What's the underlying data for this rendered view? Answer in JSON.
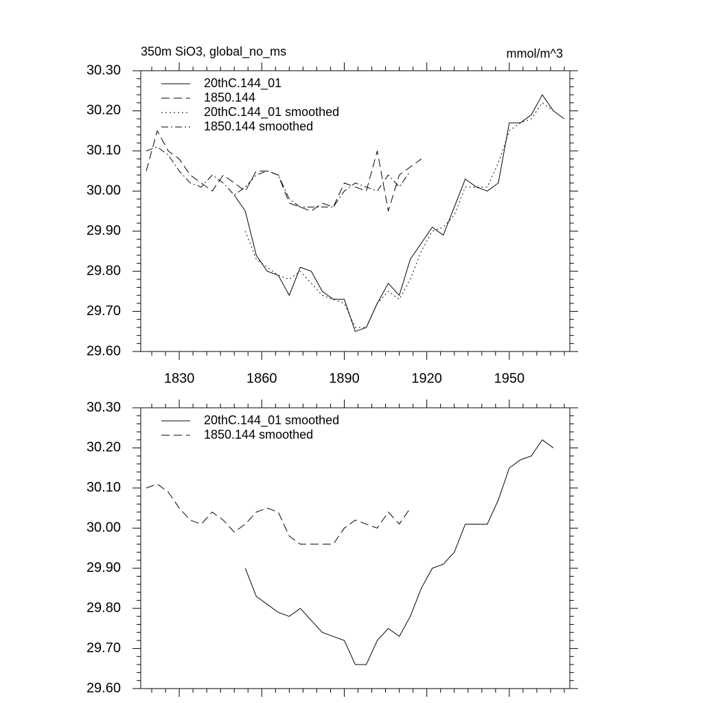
{
  "chart_data": [
    {
      "type": "line",
      "title": "350m SiO3, global_no_ms",
      "units": "mmol/m^3",
      "legend": "upper left",
      "x": [
        1818,
        1822,
        1826,
        1830,
        1834,
        1838,
        1842,
        1846,
        1850,
        1854,
        1858,
        1862,
        1866,
        1870,
        1874,
        1878,
        1882,
        1886,
        1890,
        1894,
        1898,
        1902,
        1906,
        1910,
        1914,
        1918,
        1922,
        1926,
        1930,
        1934,
        1938,
        1942,
        1946,
        1950,
        1954,
        1958,
        1962,
        1966,
        1970
      ],
      "xlim": [
        1816,
        1972
      ],
      "xticks": [
        1830,
        1860,
        1890,
        1920,
        1950
      ],
      "ylim": [
        29.6,
        30.3
      ],
      "yticks": [
        {
          "value": 29.6,
          "label": "29.60"
        },
        {
          "value": 29.7,
          "label": "29.70"
        },
        {
          "value": 29.8,
          "label": "29.80"
        },
        {
          "value": 29.9,
          "label": "29.90"
        },
        {
          "value": 30.0,
          "label": "30.00"
        },
        {
          "value": 30.1,
          "label": "30.10"
        },
        {
          "value": 30.2,
          "label": "30.20"
        },
        {
          "value": 30.3,
          "label": "30.30"
        }
      ],
      "series": [
        {
          "name": "20thC.144_01",
          "color": "#000000",
          "dash": "solid",
          "values": [
            null,
            null,
            null,
            null,
            null,
            null,
            null,
            null,
            29.99,
            29.95,
            29.84,
            29.8,
            29.79,
            29.74,
            29.81,
            29.8,
            29.75,
            29.73,
            29.73,
            29.65,
            29.66,
            29.72,
            29.77,
            29.74,
            29.83,
            29.87,
            29.91,
            29.89,
            29.96,
            30.03,
            30.01,
            30.0,
            30.02,
            30.17,
            30.17,
            30.19,
            30.24,
            30.2,
            30.18
          ]
        },
        {
          "name": "1850.144",
          "color": "#000000",
          "dash": "dashed",
          "values": [
            30.05,
            30.15,
            30.1,
            30.08,
            30.04,
            30.02,
            30.0,
            30.04,
            30.02,
            30.0,
            30.05,
            30.05,
            30.04,
            29.97,
            29.96,
            29.95,
            29.97,
            29.96,
            30.02,
            30.01,
            30.0,
            30.1,
            29.95,
            30.04,
            30.06,
            30.08,
            null,
            null,
            null,
            null,
            null,
            null,
            null,
            null,
            null,
            null,
            null,
            null,
            null
          ]
        },
        {
          "name": "20thC.144_01 smoothed",
          "color": "#000000",
          "dash": "dotted",
          "values": [
            null,
            null,
            null,
            null,
            null,
            null,
            null,
            null,
            null,
            29.9,
            29.83,
            29.81,
            29.79,
            29.78,
            29.8,
            29.77,
            29.74,
            29.73,
            29.72,
            29.66,
            29.66,
            29.72,
            29.75,
            29.73,
            29.78,
            29.85,
            29.9,
            29.91,
            29.94,
            30.01,
            30.01,
            30.01,
            30.07,
            30.15,
            30.17,
            30.18,
            30.22,
            30.2,
            null
          ]
        },
        {
          "name": "1850.144 smoothed",
          "color": "#000000",
          "dash": "dashdot",
          "values": [
            30.1,
            30.11,
            30.09,
            30.05,
            30.02,
            30.01,
            30.04,
            30.02,
            29.99,
            30.01,
            30.04,
            30.05,
            30.04,
            29.98,
            29.96,
            29.96,
            29.96,
            29.96,
            30.0,
            30.02,
            30.01,
            30.0,
            30.04,
            30.01,
            30.05,
            null,
            null,
            null,
            null,
            null,
            null,
            null,
            null,
            null,
            null,
            null,
            null,
            null,
            null
          ]
        }
      ]
    },
    {
      "type": "line",
      "legend": "upper left",
      "x": [
        1818,
        1822,
        1826,
        1830,
        1834,
        1838,
        1842,
        1846,
        1850,
        1854,
        1858,
        1862,
        1866,
        1870,
        1874,
        1878,
        1882,
        1886,
        1890,
        1894,
        1898,
        1902,
        1906,
        1910,
        1914,
        1918,
        1922,
        1926,
        1930,
        1934,
        1938,
        1942,
        1946,
        1950,
        1954,
        1958,
        1962,
        1966,
        1970
      ],
      "xlim": [
        1816,
        1972
      ],
      "xticks": [
        1830,
        1860,
        1890,
        1920,
        1950
      ],
      "ylim": [
        29.6,
        30.3
      ],
      "yticks": [
        {
          "value": 29.6,
          "label": "29.60"
        },
        {
          "value": 29.7,
          "label": "29.70"
        },
        {
          "value": 29.8,
          "label": "29.80"
        },
        {
          "value": 29.9,
          "label": "29.90"
        },
        {
          "value": 30.0,
          "label": "30.00"
        },
        {
          "value": 30.1,
          "label": "30.10"
        },
        {
          "value": 30.2,
          "label": "30.20"
        },
        {
          "value": 30.3,
          "label": "30.30"
        }
      ],
      "series": [
        {
          "name": "20thC.144_01 smoothed",
          "color": "#000000",
          "dash": "solid",
          "values": [
            null,
            null,
            null,
            null,
            null,
            null,
            null,
            null,
            null,
            29.9,
            29.83,
            29.81,
            29.79,
            29.78,
            29.8,
            29.77,
            29.74,
            29.73,
            29.72,
            29.66,
            29.66,
            29.72,
            29.75,
            29.73,
            29.78,
            29.85,
            29.9,
            29.91,
            29.94,
            30.01,
            30.01,
            30.01,
            30.07,
            30.15,
            30.17,
            30.18,
            30.22,
            30.2,
            null
          ]
        },
        {
          "name": "1850.144 smoothed",
          "color": "#000000",
          "dash": "dashed",
          "values": [
            30.1,
            30.11,
            30.09,
            30.05,
            30.02,
            30.01,
            30.04,
            30.02,
            29.99,
            30.01,
            30.04,
            30.05,
            30.04,
            29.98,
            29.96,
            29.96,
            29.96,
            29.96,
            30.0,
            30.02,
            30.01,
            30.0,
            30.04,
            30.01,
            30.05,
            null,
            null,
            null,
            null,
            null,
            null,
            null,
            null,
            null,
            null,
            null,
            null,
            null,
            null
          ]
        }
      ]
    }
  ]
}
